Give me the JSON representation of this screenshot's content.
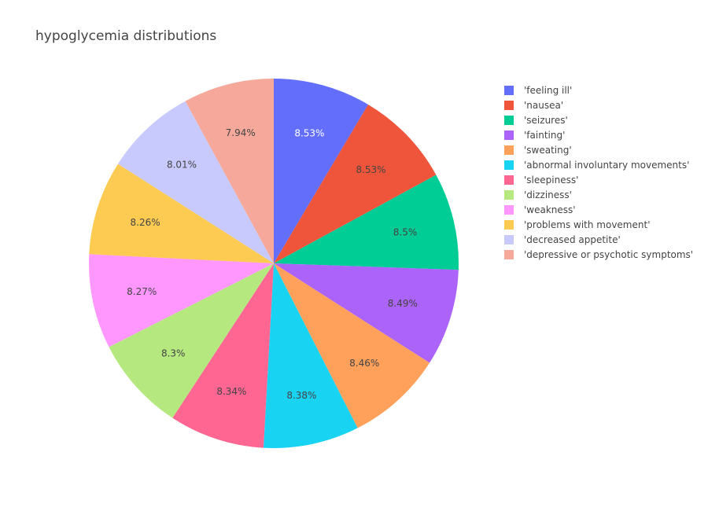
{
  "chart_data": {
    "type": "pie",
    "title": "hypoglycemia distributions",
    "direction": "clockwise",
    "start_angle_deg": 90,
    "legend_position": "right",
    "slices": [
      {
        "label": "'feeling ill'",
        "value": 8.53,
        "text": "8.53%",
        "color": "#636efa",
        "text_color": "#ffffff"
      },
      {
        "label": "'nausea'",
        "value": 8.53,
        "text": "8.53%",
        "color": "#EF553B",
        "text_color": "#444444"
      },
      {
        "label": "'seizures'",
        "value": 8.5,
        "text": "8.5%",
        "color": "#00cc96",
        "text_color": "#444444"
      },
      {
        "label": "'fainting'",
        "value": 8.49,
        "text": "8.49%",
        "color": "#ab63fa",
        "text_color": "#444444"
      },
      {
        "label": "'sweating'",
        "value": 8.46,
        "text": "8.46%",
        "color": "#FFA15A",
        "text_color": "#444444"
      },
      {
        "label": "'abnormal involuntary movements'",
        "value": 8.38,
        "text": "8.38%",
        "color": "#19d3f3",
        "text_color": "#444444"
      },
      {
        "label": "'sleepiness'",
        "value": 8.34,
        "text": "8.34%",
        "color": "#FF6692",
        "text_color": "#444444"
      },
      {
        "label": "'dizziness'",
        "value": 8.3,
        "text": "8.3%",
        "color": "#B6E880",
        "text_color": "#444444"
      },
      {
        "label": "'weakness'",
        "value": 8.27,
        "text": "8.27%",
        "color": "#FF97FF",
        "text_color": "#444444"
      },
      {
        "label": "'problems with movement'",
        "value": 8.26,
        "text": "8.26%",
        "color": "#FECB52",
        "text_color": "#444444"
      },
      {
        "label": "'decreased appetite'",
        "value": 8.01,
        "text": "8.01%",
        "color": "#c8cafd",
        "text_color": "#444444"
      },
      {
        "label": "'depressive or psychotic symptoms'",
        "value": 7.94,
        "text": "7.94%",
        "color": "#f6a99b",
        "text_color": "#444444"
      }
    ]
  }
}
